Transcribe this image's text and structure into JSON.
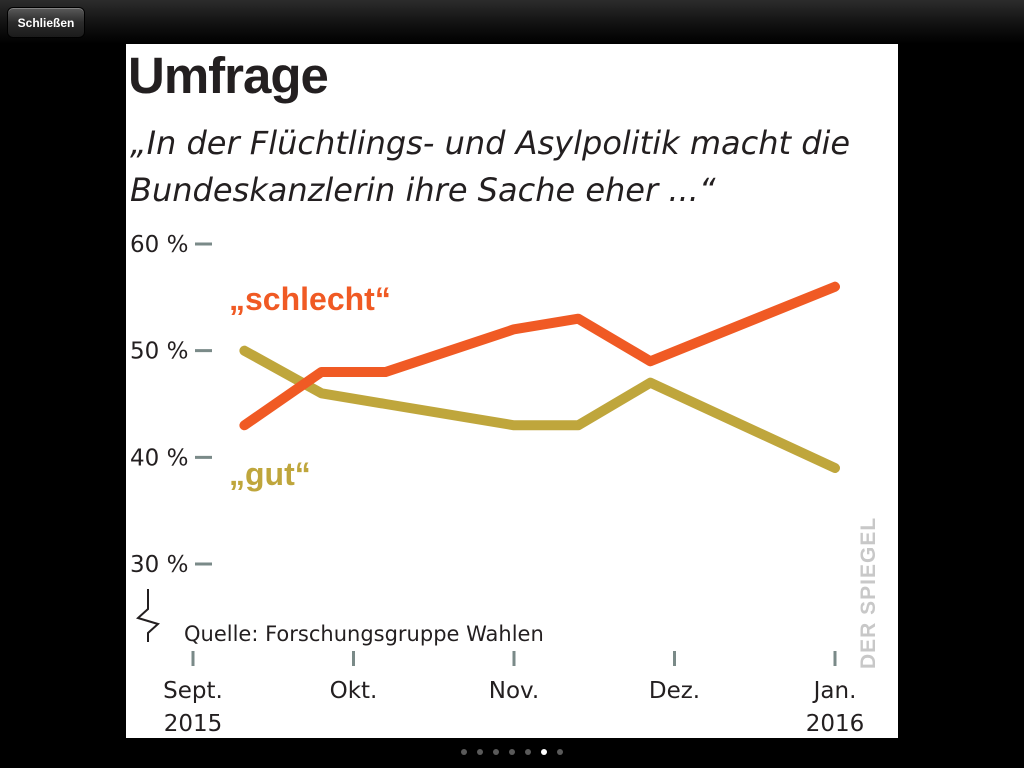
{
  "toolbar": {
    "close_label": "Schließen"
  },
  "pager": {
    "count": 7,
    "active_index": 5
  },
  "colors": {
    "schlecht": "#f05a24",
    "gut": "#bfa63c",
    "ticks": "#7a8a88",
    "text": "#231f20"
  },
  "chart_data": {
    "type": "line",
    "title": "Umfrage",
    "subtitle_line1": "„In der Flüchtlings- und Asylpolitik macht die",
    "subtitle_line2": "Bundeskanzlerin ihre Sache eher ...“",
    "source": "Quelle: Forschungsgruppe Wahlen",
    "watermark": "DER SPIEGEL",
    "xlabel": "",
    "ylabel": "",
    "ylim": [
      30,
      60
    ],
    "ytick_values": [
      30,
      40,
      50,
      60
    ],
    "yticks": [
      "30 %",
      "40 %",
      "50 %",
      "60 %"
    ],
    "xlim": [
      0,
      4
    ],
    "x_positions": [
      0,
      1,
      2,
      3,
      4
    ],
    "x_tick_labels": [
      {
        "month": "Sept.",
        "year": "2015"
      },
      {
        "month": "Okt.",
        "year": ""
      },
      {
        "month": "Nov.",
        "year": ""
      },
      {
        "month": "Dez.",
        "year": ""
      },
      {
        "month": "Jan.",
        "year": "2016"
      }
    ],
    "series": [
      {
        "name": "schlecht",
        "label": "„schlecht“",
        "x": [
          0.32,
          0.8,
          1.2,
          2.0,
          2.4,
          2.85,
          4.0
        ],
        "values": [
          43,
          48,
          48,
          52,
          53,
          49,
          56
        ]
      },
      {
        "name": "gut",
        "label": "„gut“",
        "x": [
          0.32,
          0.8,
          1.2,
          2.0,
          2.4,
          2.85,
          4.0
        ],
        "values": [
          50,
          46,
          45,
          43,
          43,
          47,
          39
        ]
      }
    ]
  }
}
